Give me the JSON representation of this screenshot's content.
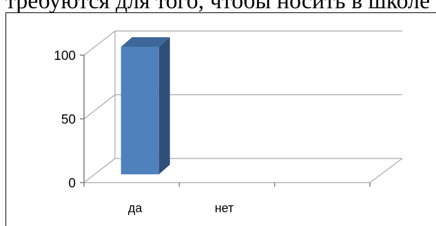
{
  "page": {
    "cut_text": "требуются для того, чтобы носить в школе"
  },
  "chart_data": {
    "type": "bar",
    "categories": [
      "да",
      "нет"
    ],
    "values": [
      100,
      0
    ],
    "ylim": [
      0,
      100
    ],
    "yticks": [
      0,
      50,
      100
    ],
    "ytick_labels": [
      "0",
      "50",
      "100"
    ],
    "grid": true,
    "style": "3d-column",
    "colors": {
      "bar_front": "#4f81bd",
      "bar_side": "#2f4e78",
      "bar_top": "#3d679a",
      "grid": "#a6a6a6",
      "axis": "#808080"
    }
  }
}
